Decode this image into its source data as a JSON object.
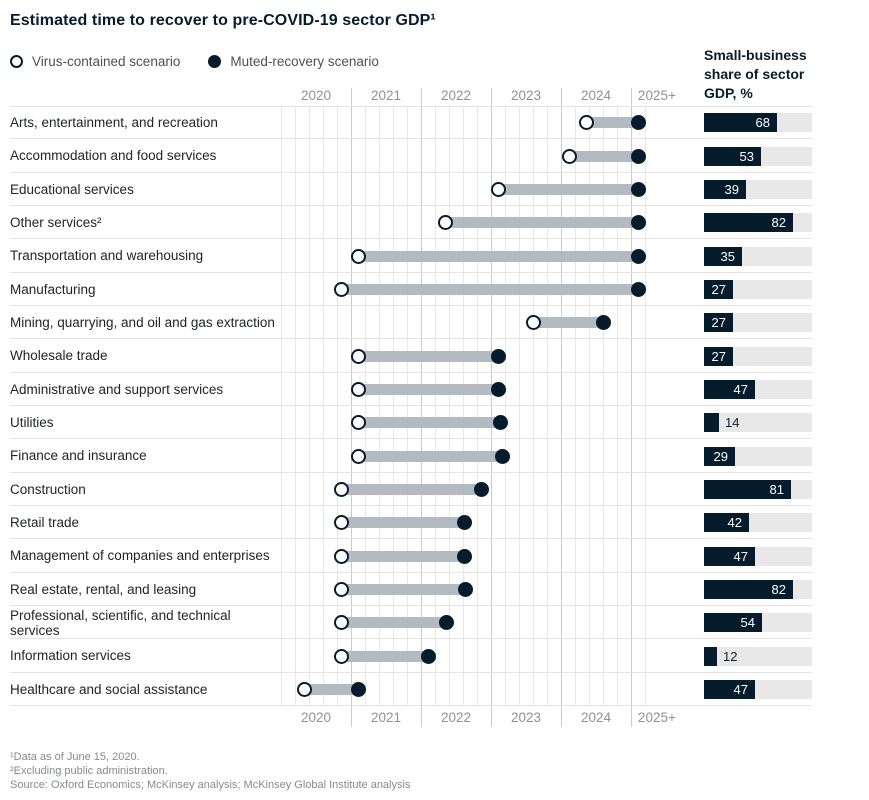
{
  "title": "Estimated time to recover to pre-COVID-19 sector GDP¹",
  "legend": {
    "virus_contained": "Virus-contained scenario",
    "muted_recovery": "Muted-recovery scenario"
  },
  "right_header": "Small-business share of sector GDP, %",
  "footnotes": {
    "note1": "¹Data as of June 15, 2020.",
    "note2": "²Excluding public administration.",
    "source": "Source: Oxford Economics; McKinsey analysis; McKinsey Global Institute analysis"
  },
  "colors": {
    "navy": "#051c2c",
    "connector_gray": "#b4bac1",
    "bar_track": "#e8e8e8",
    "grid_minor": "#e7e7e7",
    "grid_major": "#c9cacc",
    "axis_text": "#8e9196"
  },
  "chart_data": {
    "type": "dumbbell+bar",
    "title": "Estimated time to recover to pre-COVID-19 sector GDP",
    "x_axis": {
      "labels": [
        "2020",
        "2021",
        "2022",
        "2023",
        "2024",
        "2025+"
      ],
      "label_centers_years": [
        0.5,
        1.5,
        2.5,
        3.5,
        4.5,
        5.37
      ],
      "range_years": [
        0,
        5.25
      ],
      "minor_grid_step_years": 0.2,
      "major_grid_step_years": 1
    },
    "series_meta": {
      "virus": "Virus-contained scenario recovery time (years after start of 2020, open dot)",
      "muted": "Muted-recovery scenario recovery time (years after start of 2020, filled dot)",
      "share": "Small-business share of sector GDP, % (right bar, track = 100%)"
    },
    "rows": [
      {
        "label": "Arts, entertainment, and recreation",
        "virus": 4.37,
        "muted": 5.11,
        "share": 68
      },
      {
        "label": "Accommodation and food services",
        "virus": 4.12,
        "muted": 5.11,
        "share": 53
      },
      {
        "label": "Educational services",
        "virus": 3.11,
        "muted": 5.11,
        "share": 39
      },
      {
        "label": "Other services²",
        "virus": 2.35,
        "muted": 5.11,
        "share": 82
      },
      {
        "label": "Transportation and warehousing",
        "virus": 1.1,
        "muted": 5.11,
        "share": 35
      },
      {
        "label": "Manufacturing",
        "virus": 0.86,
        "muted": 5.11,
        "share": 27
      },
      {
        "label": "Mining, quarrying, and oil and gas extraction",
        "virus": 3.61,
        "muted": 4.6,
        "share": 27
      },
      {
        "label": "Wholesale trade",
        "virus": 1.1,
        "muted": 3.11,
        "share": 27
      },
      {
        "label": "Administrative and support services",
        "virus": 1.1,
        "muted": 3.11,
        "share": 47
      },
      {
        "label": "Utilities",
        "virus": 1.1,
        "muted": 3.13,
        "share": 14
      },
      {
        "label": "Finance and insurance",
        "virus": 1.1,
        "muted": 3.16,
        "share": 29
      },
      {
        "label": "Construction",
        "virus": 0.86,
        "muted": 2.86,
        "share": 81
      },
      {
        "label": "Retail trade",
        "virus": 0.86,
        "muted": 2.62,
        "share": 42
      },
      {
        "label": "Management of companies and enterprises",
        "virus": 0.86,
        "muted": 2.62,
        "share": 47
      },
      {
        "label": "Real estate, rental, and leasing",
        "virus": 0.86,
        "muted": 2.63,
        "share": 82
      },
      {
        "label": "Professional, scientific, and technical services",
        "virus": 0.86,
        "muted": 2.36,
        "share": 54
      },
      {
        "label": "Information services",
        "virus": 0.87,
        "muted": 2.1,
        "share": 12
      },
      {
        "label": "Healthcare and social assistance",
        "virus": 0.34,
        "muted": 1.1,
        "share": 47
      }
    ]
  }
}
